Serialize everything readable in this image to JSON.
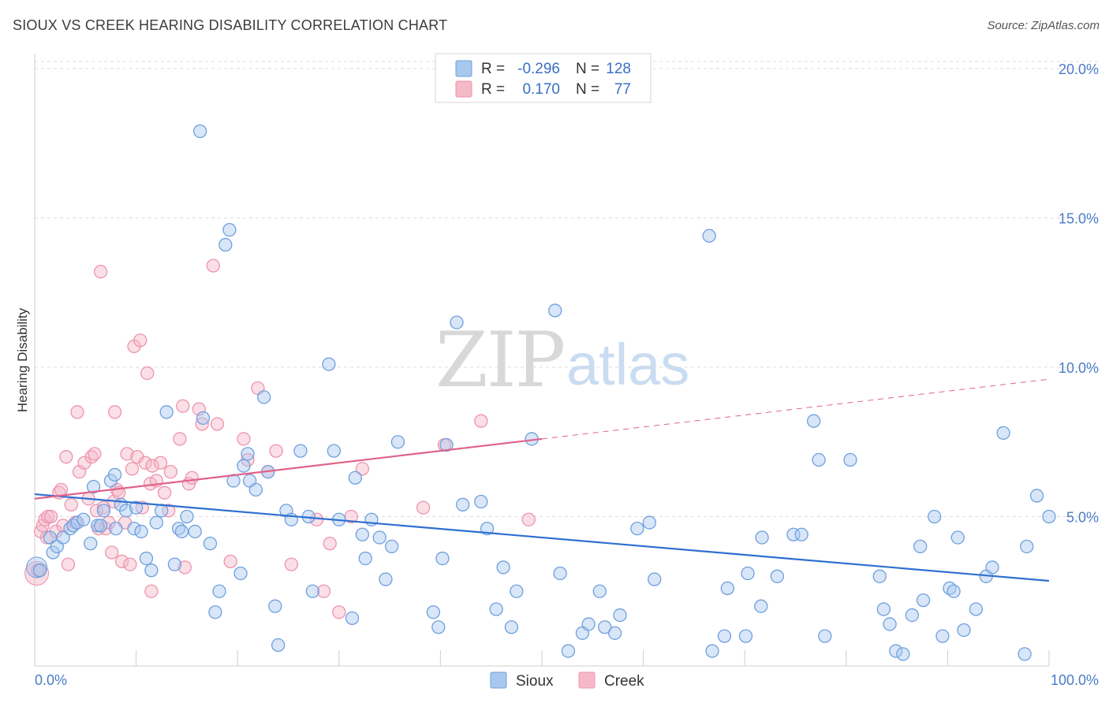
{
  "header": {
    "title": "SIOUX VS CREEK HEARING DISABILITY CORRELATION CHART",
    "source": "Source: ZipAtlas.com"
  },
  "watermark": {
    "zip": "ZIP",
    "atlas": "atlas"
  },
  "legend": {
    "rows": [
      {
        "r_label": "R =",
        "r_value": "-0.296",
        "n_label": "N =",
        "n_value": "128",
        "color": "#a8c8ef"
      },
      {
        "r_label": "R =",
        "r_value": "0.170",
        "n_label": "N =",
        "n_value": "77",
        "color": "#f5b8c9"
      }
    ]
  },
  "bottom_legend": [
    {
      "label": "Sioux",
      "color": "#a8c8ef"
    },
    {
      "label": "Creek",
      "color": "#f5b8c9"
    }
  ],
  "colors": {
    "sioux_fill": "#a8c8ef",
    "sioux_stroke": "#6fa0de",
    "sioux_line": "#2f6fd0",
    "creek_fill": "#f5b8c9",
    "creek_stroke": "#ee93ad",
    "creek_line": "#e0628b",
    "grid": "#dddddd",
    "tick_label": "#4a7cc7"
  },
  "chart_data": {
    "type": "scatter",
    "title": "SIOUX VS CREEK HEARING DISABILITY CORRELATION CHART",
    "xlabel": "",
    "ylabel": "Hearing Disability",
    "xlim": [
      0,
      100
    ],
    "ylim": [
      0,
      20.5
    ],
    "x_tick_labels": [
      "0.0%",
      "100.0%"
    ],
    "y_ticks": [
      5,
      10,
      15,
      20
    ],
    "y_tick_labels": [
      "5.0%",
      "10.0%",
      "15.0%",
      "20.0%"
    ],
    "grid": true,
    "legend_position": "top-center",
    "series": [
      {
        "name": "Sioux",
        "trend": {
          "x0": 0,
          "y0": 5.75,
          "x1": 100,
          "y1": 2.85
        },
        "points": [
          [
            0.5,
            3.2
          ],
          [
            1.5,
            4.3
          ],
          [
            1.8,
            3.8
          ],
          [
            2.2,
            4.0
          ],
          [
            2.8,
            4.3
          ],
          [
            3.5,
            4.6
          ],
          [
            3.8,
            4.7
          ],
          [
            4.2,
            4.8
          ],
          [
            4.8,
            4.9
          ],
          [
            5.5,
            4.1
          ],
          [
            5.8,
            6.0
          ],
          [
            6.2,
            4.7
          ],
          [
            6.5,
            4.7
          ],
          [
            6.8,
            5.2
          ],
          [
            7.5,
            6.2
          ],
          [
            7.9,
            6.4
          ],
          [
            8.0,
            4.6
          ],
          [
            8.5,
            5.4
          ],
          [
            9.0,
            5.2
          ],
          [
            9.8,
            4.6
          ],
          [
            10.0,
            5.3
          ],
          [
            10.5,
            4.5
          ],
          [
            11.0,
            3.6
          ],
          [
            11.5,
            3.2
          ],
          [
            12.0,
            4.8
          ],
          [
            12.5,
            5.2
          ],
          [
            13.0,
            8.5
          ],
          [
            13.8,
            3.4
          ],
          [
            14.2,
            4.6
          ],
          [
            14.5,
            4.5
          ],
          [
            15.0,
            5.0
          ],
          [
            15.8,
            4.5
          ],
          [
            16.3,
            17.9
          ],
          [
            16.6,
            8.3
          ],
          [
            17.3,
            4.1
          ],
          [
            17.8,
            1.8
          ],
          [
            18.2,
            2.5
          ],
          [
            18.8,
            14.1
          ],
          [
            19.2,
            14.6
          ],
          [
            19.6,
            6.2
          ],
          [
            20.3,
            3.1
          ],
          [
            20.6,
            6.7
          ],
          [
            21.0,
            7.1
          ],
          [
            21.2,
            6.2
          ],
          [
            21.8,
            5.9
          ],
          [
            22.6,
            9.0
          ],
          [
            23.0,
            6.5
          ],
          [
            23.7,
            2.0
          ],
          [
            24.0,
            0.7
          ],
          [
            24.8,
            5.2
          ],
          [
            25.3,
            4.9
          ],
          [
            26.2,
            7.2
          ],
          [
            27.0,
            5.0
          ],
          [
            27.4,
            2.5
          ],
          [
            29.0,
            10.1
          ],
          [
            29.5,
            7.2
          ],
          [
            30.0,
            4.9
          ],
          [
            31.3,
            1.6
          ],
          [
            31.6,
            6.3
          ],
          [
            32.3,
            4.4
          ],
          [
            32.6,
            3.6
          ],
          [
            33.2,
            4.9
          ],
          [
            34.0,
            4.3
          ],
          [
            34.6,
            2.9
          ],
          [
            35.2,
            4.0
          ],
          [
            35.8,
            7.5
          ],
          [
            39.3,
            1.8
          ],
          [
            39.8,
            1.3
          ],
          [
            40.2,
            3.6
          ],
          [
            40.6,
            7.4
          ],
          [
            41.6,
            11.5
          ],
          [
            42.2,
            5.4
          ],
          [
            44.0,
            5.5
          ],
          [
            44.6,
            4.6
          ],
          [
            45.5,
            1.9
          ],
          [
            46.2,
            3.3
          ],
          [
            47.0,
            1.3
          ],
          [
            47.5,
            2.5
          ],
          [
            49.0,
            7.6
          ],
          [
            51.3,
            11.9
          ],
          [
            51.8,
            3.1
          ],
          [
            52.6,
            0.5
          ],
          [
            54.0,
            1.1
          ],
          [
            54.6,
            1.4
          ],
          [
            55.7,
            2.5
          ],
          [
            56.2,
            1.3
          ],
          [
            57.2,
            1.1
          ],
          [
            57.7,
            1.7
          ],
          [
            59.4,
            4.6
          ],
          [
            60.6,
            4.8
          ],
          [
            61.1,
            2.9
          ],
          [
            66.5,
            14.4
          ],
          [
            66.8,
            0.5
          ],
          [
            68.0,
            1.0
          ],
          [
            68.3,
            2.6
          ],
          [
            70.1,
            1.0
          ],
          [
            70.3,
            3.1
          ],
          [
            71.6,
            2.0
          ],
          [
            71.7,
            4.3
          ],
          [
            73.2,
            3.0
          ],
          [
            74.8,
            4.4
          ],
          [
            75.6,
            4.4
          ],
          [
            76.8,
            8.2
          ],
          [
            77.3,
            6.9
          ],
          [
            77.9,
            1.0
          ],
          [
            80.4,
            6.9
          ],
          [
            83.3,
            3.0
          ],
          [
            83.7,
            1.9
          ],
          [
            84.3,
            1.4
          ],
          [
            84.9,
            0.5
          ],
          [
            85.6,
            0.4
          ],
          [
            86.5,
            1.7
          ],
          [
            87.3,
            4.0
          ],
          [
            87.6,
            2.2
          ],
          [
            88.7,
            5.0
          ],
          [
            89.5,
            1.0
          ],
          [
            90.2,
            2.6
          ],
          [
            90.6,
            2.5
          ],
          [
            91.0,
            4.3
          ],
          [
            91.6,
            1.2
          ],
          [
            92.8,
            1.9
          ],
          [
            93.8,
            3.0
          ],
          [
            94.4,
            3.3
          ],
          [
            95.5,
            7.8
          ],
          [
            97.6,
            0.4
          ],
          [
            97.8,
            4.0
          ],
          [
            98.8,
            5.7
          ],
          [
            100.0,
            5.0
          ]
        ]
      },
      {
        "name": "Creek",
        "trend": {
          "x0": 0,
          "y0": 5.6,
          "x1": 50,
          "y1": 7.6,
          "dashed_to": {
            "x": 100,
            "y": 9.6
          }
        },
        "points": [
          [
            0.3,
            3.2
          ],
          [
            0.6,
            4.5
          ],
          [
            0.8,
            4.7
          ],
          [
            1.0,
            4.9
          ],
          [
            1.2,
            4.3
          ],
          [
            1.3,
            5.0
          ],
          [
            1.6,
            5.0
          ],
          [
            2.1,
            4.5
          ],
          [
            2.4,
            5.8
          ],
          [
            2.6,
            5.9
          ],
          [
            2.8,
            4.7
          ],
          [
            3.1,
            7.0
          ],
          [
            3.3,
            3.4
          ],
          [
            3.6,
            5.4
          ],
          [
            4.0,
            4.8
          ],
          [
            4.2,
            8.5
          ],
          [
            4.4,
            6.5
          ],
          [
            4.9,
            6.8
          ],
          [
            5.3,
            5.6
          ],
          [
            5.6,
            7.0
          ],
          [
            5.9,
            7.1
          ],
          [
            6.1,
            5.2
          ],
          [
            6.3,
            4.6
          ],
          [
            6.5,
            13.2
          ],
          [
            6.8,
            5.3
          ],
          [
            7.0,
            4.6
          ],
          [
            7.3,
            4.8
          ],
          [
            7.6,
            3.8
          ],
          [
            7.8,
            5.5
          ],
          [
            7.9,
            8.5
          ],
          [
            8.1,
            5.9
          ],
          [
            8.3,
            5.8
          ],
          [
            8.6,
            3.5
          ],
          [
            8.9,
            4.8
          ],
          [
            9.1,
            7.1
          ],
          [
            9.4,
            3.4
          ],
          [
            9.6,
            6.6
          ],
          [
            9.8,
            10.7
          ],
          [
            10.1,
            7.0
          ],
          [
            10.4,
            10.9
          ],
          [
            10.6,
            5.3
          ],
          [
            10.9,
            6.8
          ],
          [
            11.1,
            9.8
          ],
          [
            11.4,
            6.1
          ],
          [
            11.6,
            6.7
          ],
          [
            12.0,
            6.2
          ],
          [
            12.4,
            6.8
          ],
          [
            12.8,
            5.8
          ],
          [
            13.2,
            5.2
          ],
          [
            13.4,
            6.5
          ],
          [
            14.3,
            7.6
          ],
          [
            14.6,
            8.7
          ],
          [
            14.8,
            3.3
          ],
          [
            15.2,
            6.1
          ],
          [
            15.5,
            6.3
          ],
          [
            16.2,
            8.6
          ],
          [
            16.5,
            8.1
          ],
          [
            17.6,
            13.4
          ],
          [
            18.0,
            8.1
          ],
          [
            19.3,
            3.5
          ],
          [
            20.6,
            7.6
          ],
          [
            21.0,
            6.9
          ],
          [
            22.0,
            9.3
          ],
          [
            23.0,
            6.5
          ],
          [
            23.8,
            7.2
          ],
          [
            25.3,
            3.4
          ],
          [
            27.8,
            4.9
          ],
          [
            28.5,
            2.5
          ],
          [
            29.1,
            4.1
          ],
          [
            30.0,
            1.8
          ],
          [
            31.2,
            5.0
          ],
          [
            32.3,
            6.6
          ],
          [
            38.3,
            5.3
          ],
          [
            40.4,
            7.4
          ],
          [
            44.0,
            8.2
          ],
          [
            48.7,
            4.9
          ],
          [
            11.5,
            2.5
          ]
        ]
      }
    ]
  }
}
